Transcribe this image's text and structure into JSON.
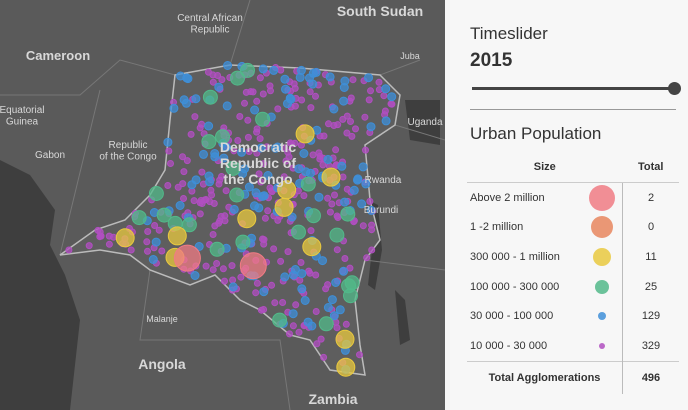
{
  "map": {
    "labels": [
      {
        "lines": [
          "South Sudan"
        ]
      },
      {
        "lines": [
          "Central African",
          "Republic"
        ]
      },
      {
        "lines": [
          "Cameroon"
        ]
      },
      {
        "lines": [
          "Equatorial",
          "Guinea"
        ]
      },
      {
        "lines": [
          "Gabon"
        ]
      },
      {
        "lines": [
          "Republic",
          "of the Congo"
        ]
      },
      {
        "lines": [
          "Democratic",
          "Republic of",
          "the Congo"
        ]
      },
      {
        "lines": [
          "Uganda"
        ]
      },
      {
        "lines": [
          "Rwanda"
        ]
      },
      {
        "lines": [
          "Burundi"
        ]
      },
      {
        "lines": [
          "Angola"
        ]
      },
      {
        "lines": [
          "Zambia"
        ]
      },
      {
        "lines": [
          "Malanje"
        ]
      },
      {
        "lines": [
          "Juba"
        ]
      }
    ]
  },
  "panel": {
    "slider_title": "Timeslider",
    "year": "2015",
    "legend_title": "Urban Population",
    "table": {
      "header": [
        "Size",
        "Total"
      ],
      "rows": [
        {
          "label": "Above 2 million",
          "total": "2",
          "color": "#f07b84"
        },
        {
          "label": "1 -2 million",
          "total": "0",
          "color": "#e8865e"
        },
        {
          "label": "300 000 - 1 million",
          "total": "11",
          "color": "#e9c93f"
        },
        {
          "label": "100 000 - 300 000",
          "total": "25",
          "color": "#52b98a"
        },
        {
          "label": "30 000 - 100 000",
          "total": "129",
          "color": "#3f8fd8"
        },
        {
          "label": "10 000 - 30 000",
          "total": "329",
          "color": "#b04fc0"
        }
      ],
      "footer": [
        "Total Agglomerations",
        "496"
      ]
    }
  }
}
